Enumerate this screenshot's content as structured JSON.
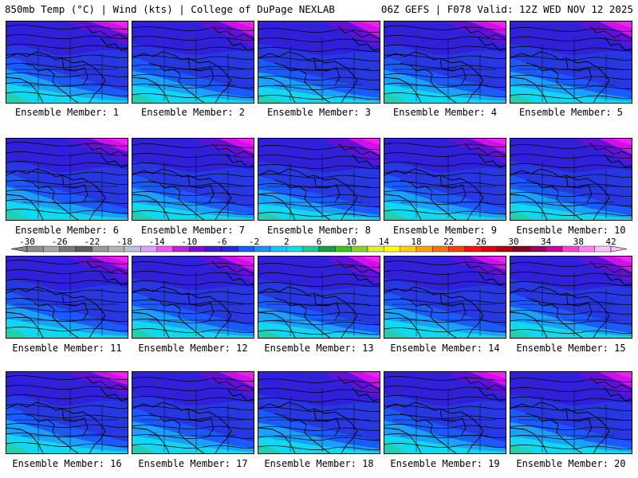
{
  "header": {
    "left": "850mb Temp (°C) | Wind (kts) | College of DuPage NEXLAB",
    "right": "06Z GEFS | F078 Valid: 12Z WED NOV 12 2025"
  },
  "member_label_prefix": "Ensemble Member: ",
  "members": [
    {
      "id": "1"
    },
    {
      "id": "2"
    },
    {
      "id": "3"
    },
    {
      "id": "4"
    },
    {
      "id": "5"
    },
    {
      "id": "6"
    },
    {
      "id": "7"
    },
    {
      "id": "8"
    },
    {
      "id": "9"
    },
    {
      "id": "10"
    },
    {
      "id": "11"
    },
    {
      "id": "12"
    },
    {
      "id": "13"
    },
    {
      "id": "14"
    },
    {
      "id": "15"
    },
    {
      "id": "16"
    },
    {
      "id": "17"
    },
    {
      "id": "18"
    },
    {
      "id": "19"
    },
    {
      "id": "20"
    }
  ],
  "colorbar": {
    "labels": [
      "-30",
      "-26",
      "-22",
      "-18",
      "-14",
      "-10",
      "-6",
      "-2",
      "2",
      "6",
      "10",
      "14",
      "18",
      "22",
      "26",
      "30",
      "34",
      "38",
      "42"
    ],
    "colors": [
      "#8c8c8c",
      "#a6a6a6",
      "#787878",
      "#5f5f5f",
      "#9a9a9a",
      "#b4b4b4",
      "#c0c0d8",
      "#e0a0ff",
      "#ff50ff",
      "#c020e0",
      "#7a10d8",
      "#4020c8",
      "#2828e0",
      "#1a5aff",
      "#1a90ff",
      "#10c8ff",
      "#10e0e0",
      "#20c898",
      "#10a040",
      "#40c020",
      "#90d020",
      "#e0f020",
      "#ffff00",
      "#ffd000",
      "#ffa000",
      "#ff7000",
      "#ff4000",
      "#ff1010",
      "#e00010",
      "#b00010",
      "#880020",
      "#a00060",
      "#d000a0",
      "#ff40d0",
      "#ff80ff",
      "#ffc0ff"
    ],
    "palette": {
      "purple": "#6010d8",
      "blue_violet": "#3020d8",
      "blue": "#2838e0",
      "royal": "#1a5aff",
      "sky": "#1aa0ff",
      "cyan": "#10d8f0",
      "teal": "#20d0b0",
      "magenta": "#d010e8",
      "pink": "#f020f0"
    }
  }
}
